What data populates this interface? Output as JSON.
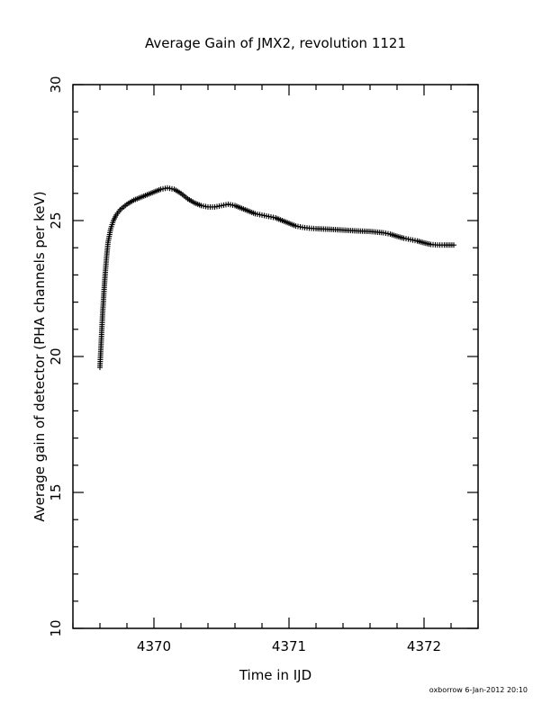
{
  "chart_data": {
    "type": "scatter",
    "title": "Average Gain of JMX2, revolution 1121",
    "xlabel": "Time in IJD",
    "ylabel": "Average gain of detector (PHA channels per keV)",
    "xlim": [
      4369.4,
      4372.4
    ],
    "ylim": [
      10,
      30
    ],
    "xticks": [
      4370,
      4371,
      4372
    ],
    "xtick_labels": [
      "4370",
      "4371",
      "4372"
    ],
    "yticks": [
      10,
      15,
      20,
      25,
      30
    ],
    "ytick_labels": [
      "10",
      "15",
      "20",
      "25",
      "30"
    ],
    "marker": "+",
    "grid": false,
    "series": [
      {
        "x": [
          4369.6,
          4369.61,
          4369.62,
          4369.63,
          4369.64,
          4369.65,
          4369.66,
          4369.68,
          4369.7,
          4369.72,
          4369.75,
          4369.8,
          4369.85,
          4369.9,
          4369.95,
          4370.0,
          4370.05,
          4370.1,
          4370.15,
          4370.2,
          4370.25,
          4370.3,
          4370.35,
          4370.4,
          4370.45,
          4370.5,
          4370.55,
          4370.6,
          4370.65,
          4370.7,
          4370.75,
          4370.8,
          4370.85,
          4370.9,
          4370.95,
          4371.0,
          4371.05,
          4371.1,
          4371.15,
          4371.2,
          4371.3,
          4371.4,
          4371.5,
          4371.6,
          4371.7,
          4371.75,
          4371.8,
          4371.85,
          4371.9,
          4371.95,
          4372.0,
          4372.05,
          4372.1,
          4372.15,
          4372.22
        ],
        "y": [
          19.6,
          20.6,
          21.6,
          22.4,
          23.1,
          23.7,
          24.2,
          24.7,
          25.0,
          25.2,
          25.4,
          25.6,
          25.75,
          25.85,
          25.95,
          26.05,
          26.15,
          26.2,
          26.15,
          26.0,
          25.8,
          25.65,
          25.55,
          25.5,
          25.5,
          25.55,
          25.6,
          25.55,
          25.45,
          25.35,
          25.25,
          25.2,
          25.15,
          25.1,
          25.0,
          24.9,
          24.8,
          24.75,
          24.72,
          24.7,
          24.68,
          24.65,
          24.62,
          24.6,
          24.55,
          24.5,
          24.42,
          24.35,
          24.3,
          24.25,
          24.18,
          24.12,
          24.1,
          24.1,
          24.1
        ]
      }
    ]
  },
  "footer": {
    "stamp": "oxborrow   6-Jan-2012 20:10"
  }
}
